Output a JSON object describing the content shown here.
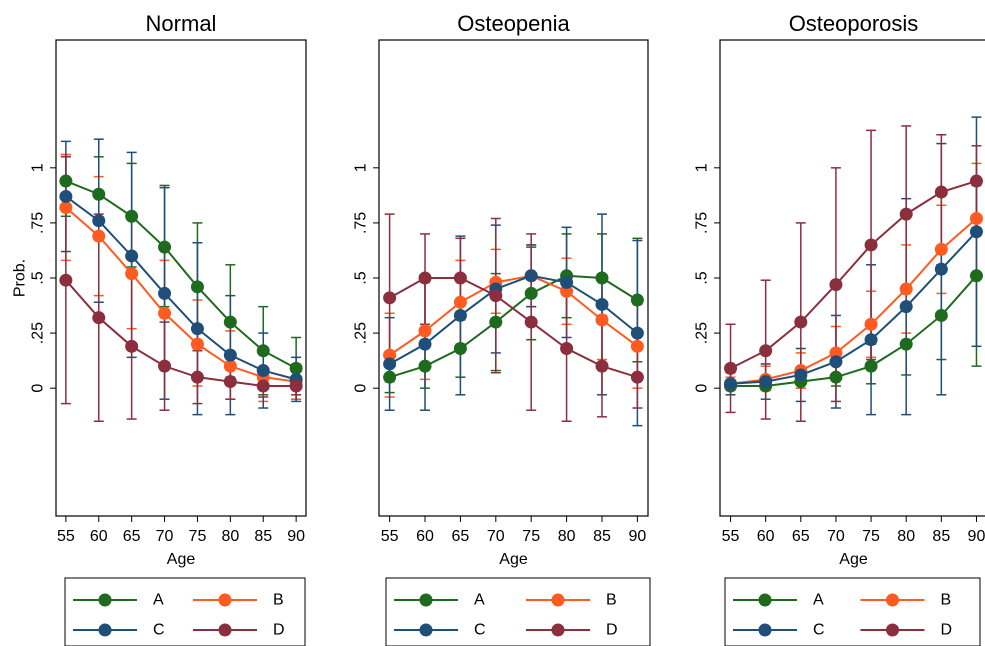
{
  "chart_data": [
    {
      "type": "line",
      "title": "Normal",
      "xlabel": "Age",
      "ylabel": "Prob.",
      "x": [
        55,
        60,
        65,
        70,
        75,
        80,
        85,
        90
      ],
      "xticks": [
        "55",
        "60",
        "65",
        "70",
        "75",
        "80",
        "85",
        "90"
      ],
      "yticks": [
        {
          "v": 0,
          "label": "0"
        },
        {
          "v": 0.25,
          "label": ".25"
        },
        {
          "v": 0.5,
          "label": ".5"
        },
        {
          "v": 0.75,
          "label": ".75"
        },
        {
          "v": 1,
          "label": "1"
        }
      ],
      "xlim": [
        53.5,
        91.5
      ],
      "ylim": [
        -0.58,
        1.58
      ],
      "grid": false,
      "series": [
        {
          "name": "A",
          "color": "#1e6b1e",
          "values": [
            0.94,
            0.88,
            0.78,
            0.64,
            0.46,
            0.3,
            0.17,
            0.09
          ],
          "ci_low": [
            0.78,
            0.7,
            0.55,
            0.37,
            0.18,
            0.05,
            -0.03,
            -0.05
          ],
          "ci_high": [
            1.06,
            1.05,
            1.02,
            0.92,
            0.75,
            0.56,
            0.37,
            0.23
          ]
        },
        {
          "name": "B",
          "color": "#ff5a1f",
          "values": [
            0.82,
            0.69,
            0.52,
            0.34,
            0.2,
            0.1,
            0.05,
            0.03
          ],
          "ci_low": [
            0.58,
            0.42,
            0.27,
            0.11,
            0.01,
            -0.05,
            -0.06,
            -0.05
          ],
          "ci_high": [
            1.06,
            0.96,
            0.78,
            0.58,
            0.4,
            0.26,
            0.16,
            0.11
          ]
        },
        {
          "name": "C",
          "color": "#1f4e79",
          "values": [
            0.87,
            0.76,
            0.6,
            0.43,
            0.27,
            0.15,
            0.08,
            0.04
          ],
          "ci_low": [
            0.62,
            0.39,
            0.14,
            -0.05,
            -0.12,
            -0.12,
            -0.09,
            -0.06
          ],
          "ci_high": [
            1.12,
            1.13,
            1.07,
            0.91,
            0.66,
            0.42,
            0.25,
            0.14
          ]
        },
        {
          "name": "D",
          "color": "#8b2f3f",
          "values": [
            0.49,
            0.32,
            0.19,
            0.1,
            0.05,
            0.03,
            0.01,
            0.01
          ],
          "ci_low": [
            -0.07,
            -0.15,
            -0.14,
            -0.1,
            -0.07,
            -0.05,
            -0.04,
            -0.03
          ],
          "ci_high": [
            1.05,
            0.79,
            0.52,
            0.3,
            0.17,
            0.11,
            0.06,
            0.04
          ]
        }
      ]
    },
    {
      "type": "line",
      "title": "Osteopenia",
      "xlabel": "Age",
      "x": [
        55,
        60,
        65,
        70,
        75,
        80,
        85,
        90
      ],
      "xticks": [
        "55",
        "60",
        "65",
        "70",
        "75",
        "80",
        "85",
        "90"
      ],
      "yticks": [
        {
          "v": 0,
          "label": "0"
        },
        {
          "v": 0.25,
          "label": ".25"
        },
        {
          "v": 0.5,
          "label": ".5"
        },
        {
          "v": 0.75,
          "label": ".75"
        },
        {
          "v": 1,
          "label": "1"
        }
      ],
      "xlim": [
        53.5,
        91.5
      ],
      "ylim": [
        -0.58,
        1.58
      ],
      "grid": false,
      "series": [
        {
          "name": "A",
          "color": "#1e6b1e",
          "values": [
            0.05,
            0.1,
            0.18,
            0.3,
            0.43,
            0.51,
            0.5,
            0.4
          ],
          "ci_low": [
            -0.02,
            0.0,
            0.05,
            0.08,
            0.22,
            0.32,
            0.3,
            0.12
          ],
          "ci_high": [
            0.12,
            0.2,
            0.31,
            0.52,
            0.64,
            0.7,
            0.7,
            0.68
          ]
        },
        {
          "name": "B",
          "color": "#ff5a1f",
          "values": [
            0.15,
            0.26,
            0.39,
            0.48,
            0.51,
            0.44,
            0.31,
            0.19
          ],
          "ci_low": [
            -0.04,
            0.04,
            0.2,
            0.34,
            0.37,
            0.29,
            0.13,
            0.0
          ],
          "ci_high": [
            0.34,
            0.48,
            0.58,
            0.63,
            0.65,
            0.59,
            0.49,
            0.38
          ]
        },
        {
          "name": "C",
          "color": "#1f4e79",
          "values": [
            0.11,
            0.2,
            0.33,
            0.45,
            0.51,
            0.48,
            0.38,
            0.25
          ],
          "ci_low": [
            -0.1,
            -0.1,
            -0.03,
            0.16,
            0.37,
            0.23,
            -0.03,
            -0.17
          ],
          "ci_high": [
            0.32,
            0.5,
            0.69,
            0.74,
            0.65,
            0.73,
            0.79,
            0.67
          ]
        },
        {
          "name": "D",
          "color": "#8b2f3f",
          "values": [
            0.41,
            0.5,
            0.5,
            0.42,
            0.3,
            0.18,
            0.1,
            0.05
          ],
          "ci_low": [
            0.03,
            0.29,
            0.33,
            0.07,
            -0.1,
            -0.15,
            -0.13,
            -0.09
          ],
          "ci_high": [
            0.79,
            0.7,
            0.68,
            0.77,
            0.7,
            0.51,
            0.33,
            0.19
          ]
        }
      ]
    },
    {
      "type": "line",
      "title": "Osteoporosis",
      "xlabel": "Age",
      "x": [
        55,
        60,
        65,
        70,
        75,
        80,
        85,
        90
      ],
      "xticks": [
        "55",
        "60",
        "65",
        "70",
        "75",
        "80",
        "85",
        "90"
      ],
      "yticks": [
        {
          "v": 0,
          "label": "0"
        },
        {
          "v": 0.25,
          "label": ".25"
        },
        {
          "v": 0.5,
          "label": ".5"
        },
        {
          "v": 0.75,
          "label": ".75"
        },
        {
          "v": 1,
          "label": "1"
        }
      ],
      "xlim": [
        53.5,
        91.5
      ],
      "ylim": [
        -0.58,
        1.58
      ],
      "grid": false,
      "series": [
        {
          "name": "A",
          "color": "#1e6b1e",
          "values": [
            0.01,
            0.01,
            0.03,
            0.05,
            0.1,
            0.2,
            0.33,
            0.51
          ],
          "ci_low": [
            0.0,
            -0.01,
            0.0,
            0.01,
            0.02,
            0.06,
            0.13,
            0.1
          ],
          "ci_high": [
            0.02,
            0.04,
            0.07,
            0.12,
            0.2,
            0.37,
            0.56,
            0.92
          ]
        },
        {
          "name": "B",
          "color": "#ff5a1f",
          "values": [
            0.02,
            0.04,
            0.08,
            0.16,
            0.29,
            0.45,
            0.63,
            0.77
          ],
          "ci_low": [
            -0.01,
            -0.01,
            0.0,
            0.04,
            0.14,
            0.25,
            0.43,
            0.52
          ],
          "ci_high": [
            0.05,
            0.1,
            0.16,
            0.28,
            0.44,
            0.65,
            0.83,
            1.02
          ]
        },
        {
          "name": "C",
          "color": "#1f4e79",
          "values": [
            0.02,
            0.03,
            0.06,
            0.12,
            0.22,
            0.37,
            0.54,
            0.71
          ],
          "ci_low": [
            -0.03,
            -0.05,
            -0.06,
            -0.09,
            -0.12,
            -0.12,
            -0.03,
            0.19
          ],
          "ci_high": [
            0.07,
            0.11,
            0.18,
            0.33,
            0.56,
            0.86,
            1.11,
            1.23
          ]
        },
        {
          "name": "D",
          "color": "#8b2f3f",
          "values": [
            0.09,
            0.17,
            0.3,
            0.47,
            0.65,
            0.79,
            0.89,
            0.94
          ],
          "ci_low": [
            -0.11,
            -0.14,
            -0.15,
            -0.06,
            0.13,
            0.38,
            0.62,
            0.78
          ],
          "ci_high": [
            0.29,
            0.49,
            0.75,
            1.0,
            1.17,
            1.19,
            1.15,
            1.1
          ]
        }
      ]
    }
  ],
  "legend": {
    "placement": "bottom",
    "items": [
      {
        "label": "A",
        "color": "#1e6b1e"
      },
      {
        "label": "B",
        "color": "#ff5a1f"
      },
      {
        "label": "C",
        "color": "#1f4e79"
      },
      {
        "label": "D",
        "color": "#8b2f3f"
      }
    ]
  }
}
